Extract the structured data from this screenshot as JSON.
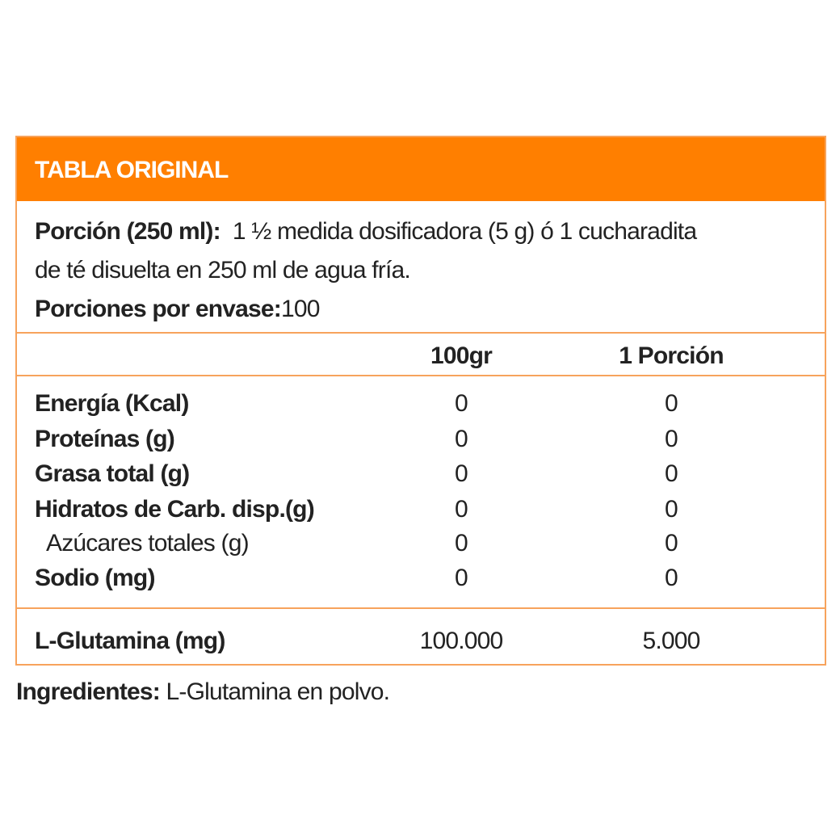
{
  "title": "TABLA ORIGINAL",
  "serving": {
    "label": "Porción (250 ml):",
    "text1": "1 ½ medida dosificadora (5 g) ó 1 cucharadita",
    "text2": "de té disuelta en 250 ml de agua fría."
  },
  "servings_per": {
    "label": "Porciones por envase:",
    "value": "100"
  },
  "columns": [
    "100gr",
    "1 Porción"
  ],
  "rows": [
    {
      "name": "Energía (Kcal)",
      "v100": "0",
      "vp": "0"
    },
    {
      "name": "Proteínas (g)",
      "v100": "0",
      "vp": "0"
    },
    {
      "name": "Grasa total (g)",
      "v100": "0",
      "vp": "0"
    },
    {
      "name": "Hidratos de Carb. disp.(g)",
      "v100": "0",
      "vp": "0"
    },
    {
      "name": "Azúcares totales (g)",
      "v100": "0",
      "vp": "0"
    },
    {
      "name": "Sodio (mg)",
      "v100": "0",
      "vp": "0"
    }
  ],
  "extra": {
    "name": "L-Glutamina (mg)",
    "v100": "100.000",
    "vp": "5.000"
  },
  "ingredients": {
    "label": "Ingredientes:",
    "value": "L-Glutamina en polvo."
  },
  "colors": {
    "accent": "#ff7f00",
    "border": "#f7a35c"
  }
}
